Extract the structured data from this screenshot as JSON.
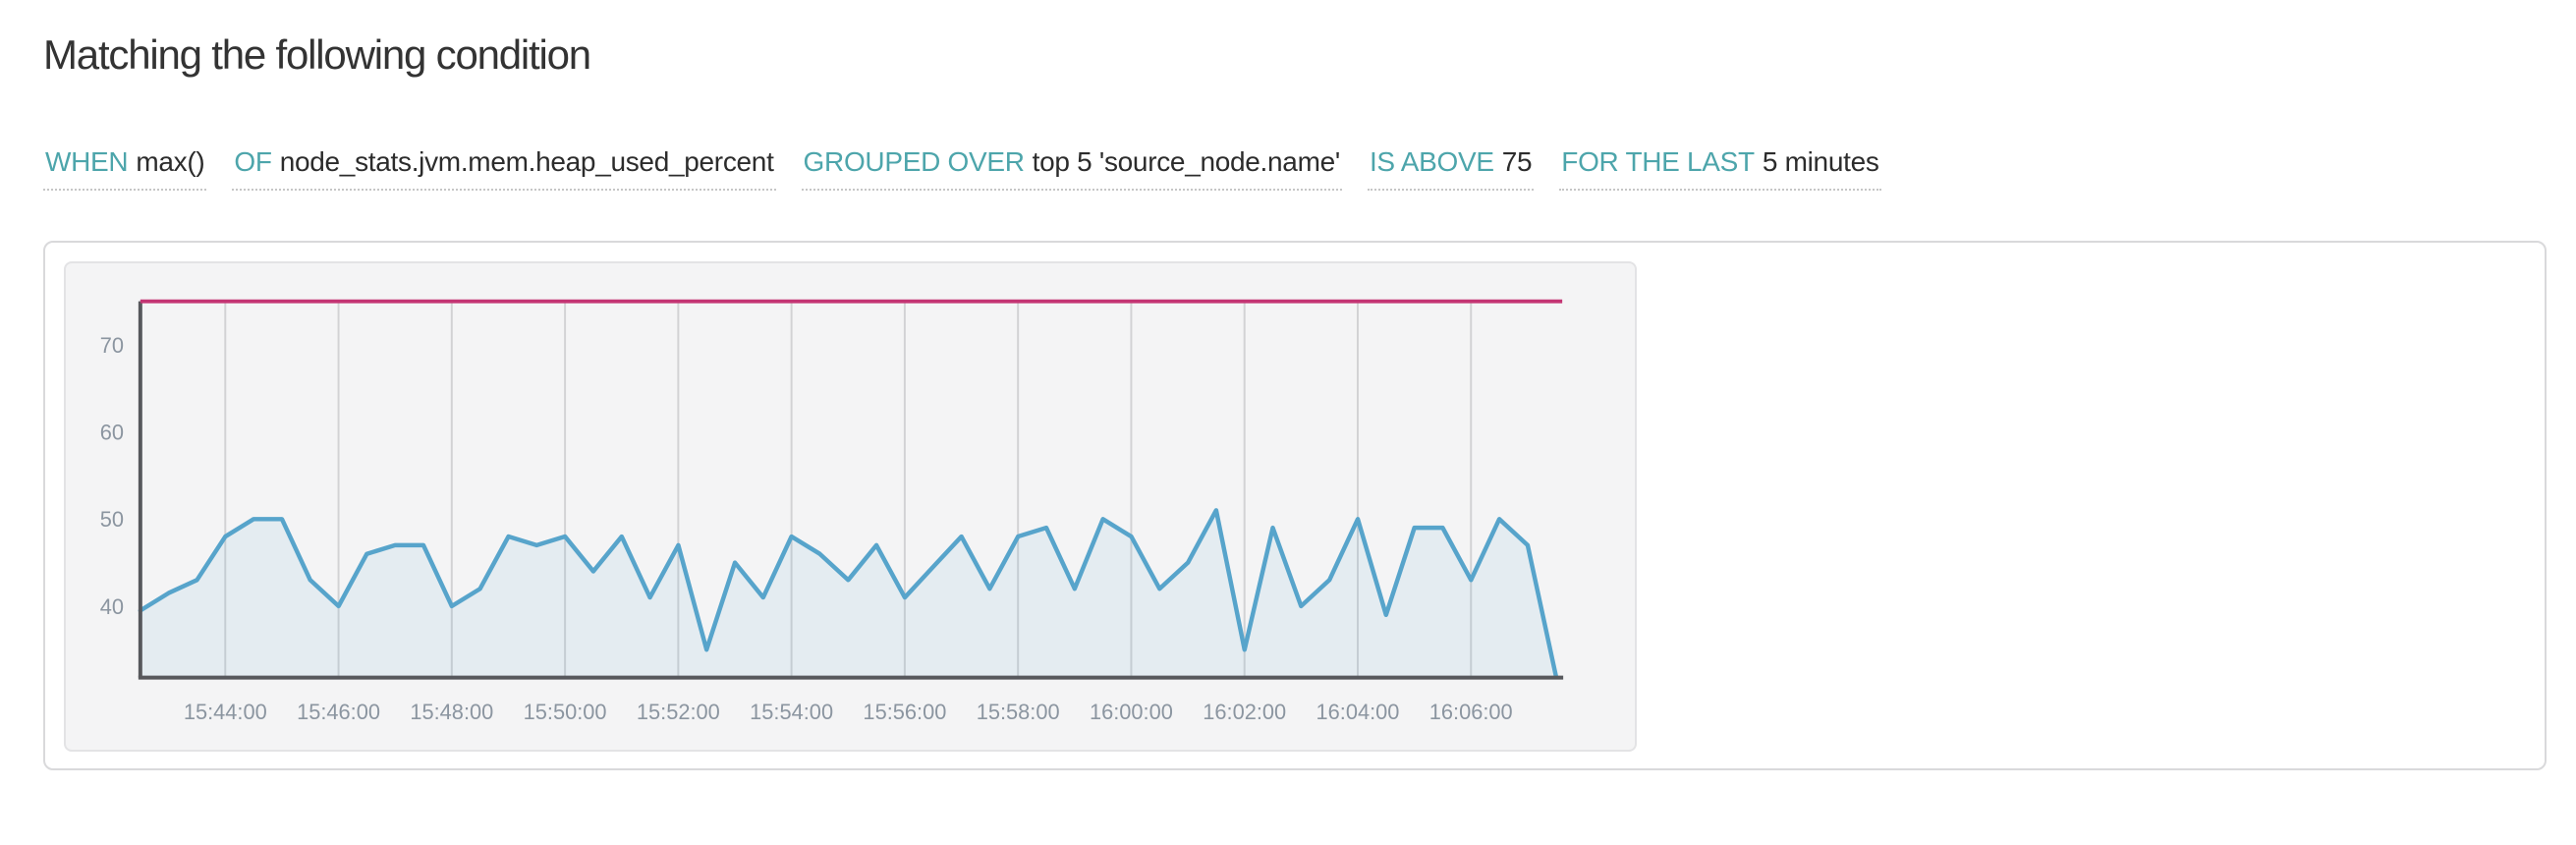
{
  "section": {
    "title": "Matching the following condition"
  },
  "condition": {
    "chips": [
      {
        "keyword": "WHEN",
        "value": "max()"
      },
      {
        "keyword": "OF",
        "value": "node_stats.jvm.mem.heap_used_percent"
      },
      {
        "keyword": "GROUPED OVER",
        "value": "top 5 'source_node.name'"
      },
      {
        "keyword": "IS ABOVE",
        "value": "75"
      },
      {
        "keyword": "FOR THE LAST",
        "value": "5 minutes"
      }
    ]
  },
  "colors": {
    "keyword_teal": "#4da5ab",
    "value_text": "#2c2c2c",
    "title_text": "#333333",
    "threshold": "#c43573",
    "line": "#57a4cb",
    "area_fill": "rgba(87,164,203,0.10)",
    "grid": "#d2d2d4",
    "axis": "#57585c",
    "tick_text": "#8b95a0",
    "panel_bg": "#f4f4f5",
    "panel_border": "#e3e3e5",
    "card_border": "#d9d9db"
  },
  "chart_data": {
    "type": "area",
    "title": "",
    "xlabel": "",
    "ylabel": "",
    "legend": "none",
    "grid": "vertical-only",
    "threshold": 75,
    "ylim": [
      31.8,
      75
    ],
    "y_ticks": [
      40,
      50,
      60,
      70
    ],
    "x": [
      "15:42:30",
      "15:43:00",
      "15:43:30",
      "15:44:00",
      "15:44:30",
      "15:45:00",
      "15:45:30",
      "15:46:00",
      "15:46:30",
      "15:47:00",
      "15:47:30",
      "15:48:00",
      "15:48:30",
      "15:49:00",
      "15:49:30",
      "15:50:00",
      "15:50:30",
      "15:51:00",
      "15:51:30",
      "15:52:00",
      "15:52:30",
      "15:53:00",
      "15:53:30",
      "15:54:00",
      "15:54:30",
      "15:55:00",
      "15:55:30",
      "15:56:00",
      "15:56:30",
      "15:57:00",
      "15:57:30",
      "15:58:00",
      "15:58:30",
      "15:59:00",
      "15:59:30",
      "16:00:00",
      "16:00:30",
      "16:01:00",
      "16:01:30",
      "16:02:00",
      "16:02:30",
      "16:03:00",
      "16:03:30",
      "16:04:00",
      "16:04:30",
      "16:05:00",
      "16:05:30",
      "16:06:00",
      "16:06:30",
      "16:07:00",
      "16:07:30"
    ],
    "x_tick_labels": [
      "15:44:00",
      "15:46:00",
      "15:48:00",
      "15:50:00",
      "15:52:00",
      "15:54:00",
      "15:56:00",
      "15:58:00",
      "16:00:00",
      "16:02:00",
      "16:04:00",
      "16:06:00"
    ],
    "series": [
      {
        "name": "max() of node_stats.jvm.mem.heap_used_percent",
        "values": [
          39.5,
          41.5,
          43,
          48,
          50,
          50,
          43,
          40,
          46,
          47,
          47,
          40,
          42,
          48,
          47,
          48,
          44,
          48,
          41,
          47,
          35,
          45,
          41,
          48,
          46,
          43,
          47,
          41,
          44.5,
          48,
          42,
          48,
          49,
          42,
          50,
          48,
          42,
          45,
          51,
          35,
          49,
          40,
          43,
          50,
          39,
          49,
          49,
          43,
          50,
          47,
          32
        ]
      }
    ]
  }
}
